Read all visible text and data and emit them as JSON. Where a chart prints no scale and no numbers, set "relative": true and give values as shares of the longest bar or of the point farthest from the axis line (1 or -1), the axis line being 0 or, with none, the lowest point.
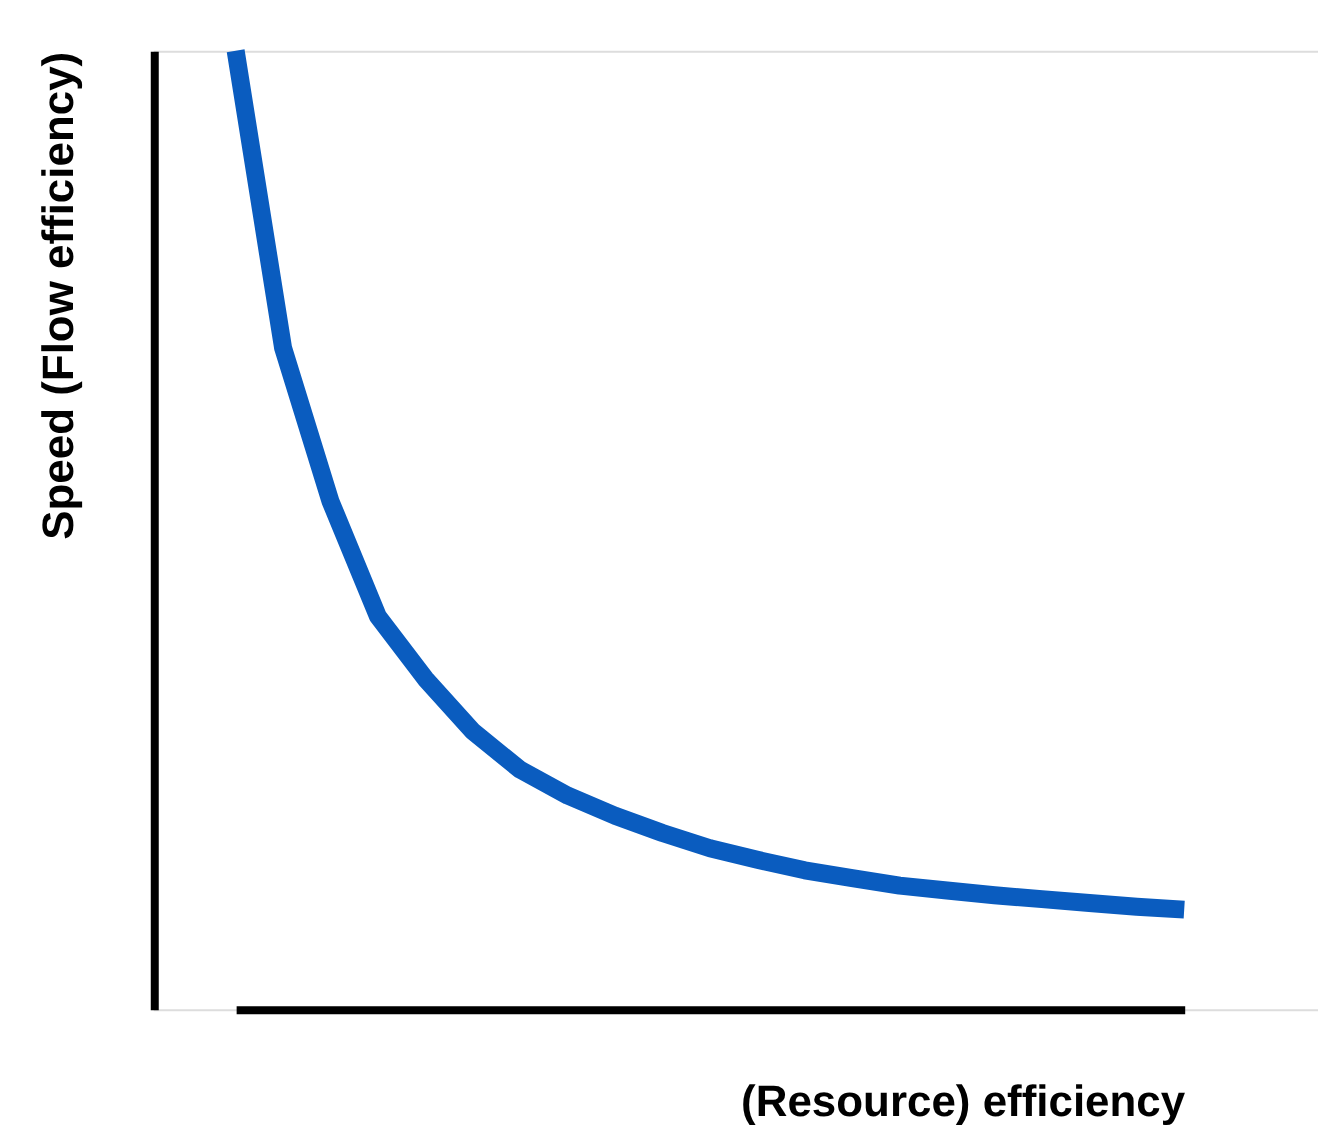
{
  "chart_data": {
    "type": "line",
    "relative": true,
    "xlabel": "(Resource) efficiency",
    "ylabel": "Speed (Flow efficiency)",
    "tick_labels": false,
    "categories": [
      null,
      null,
      null,
      null,
      null,
      null,
      null,
      null,
      null,
      null,
      null,
      null,
      null,
      null,
      null,
      null,
      null,
      null,
      null,
      null,
      null
    ],
    "series": [
      {
        "color": "#0a5cbf",
        "values": [
          1.0,
          0.69,
          0.53,
          0.41,
          0.345,
          0.29,
          0.25,
          0.223,
          0.202,
          0.184,
          0.168,
          0.156,
          0.145,
          0.137,
          0.129,
          0.124,
          0.119,
          0.115,
          0.111,
          0.107,
          0.104
        ]
      }
    ]
  }
}
